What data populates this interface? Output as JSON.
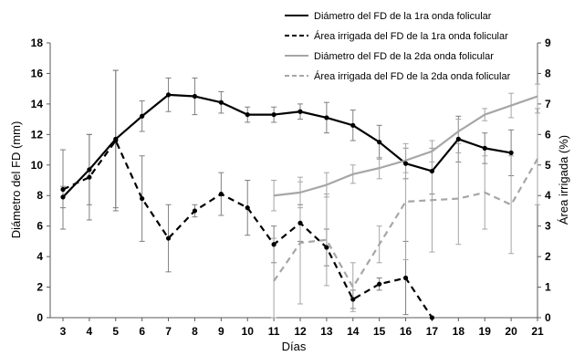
{
  "chart_data": {
    "type": "line",
    "xlabel": "Días",
    "ylabel_left": "Diámetro del FD (mm)",
    "ylabel_right": "Área irrigada (%)",
    "xlim": [
      3,
      21
    ],
    "ylim_left": [
      0,
      18
    ],
    "ylim_right": [
      0,
      9
    ],
    "yticks_left": [
      "0",
      "2",
      "4",
      "6",
      "8",
      "10",
      "12",
      "14",
      "16",
      "18"
    ],
    "yticks_right": [
      "0",
      "1",
      "2",
      "3",
      "4",
      "5",
      "6",
      "7",
      "8",
      "9"
    ],
    "xticks": [
      "3",
      "4",
      "5",
      "6",
      "7",
      "8",
      "9",
      "10",
      "11",
      "12",
      "13",
      "14",
      "15",
      "16",
      "17",
      "18",
      "19",
      "20",
      "21"
    ],
    "grid": false,
    "legend_position": "top-right",
    "series": [
      {
        "name": "Diámetro del FD de la 1ra onda folicular",
        "axis": "left",
        "color": "#000000",
        "dash": "solid",
        "markers": true,
        "x": [
          3,
          4,
          5,
          6,
          7,
          8,
          9,
          10,
          11,
          12,
          13,
          14,
          15,
          16,
          17,
          18,
          19,
          20
        ],
        "y": [
          7.9,
          9.7,
          11.7,
          13.2,
          14.6,
          14.5,
          14.1,
          13.3,
          13.3,
          13.5,
          13.1,
          12.6,
          11.5,
          10.1,
          9.6,
          11.7,
          11.1,
          10.8
        ],
        "err": [
          0.7,
          2.3,
          4.5,
          1.0,
          1.1,
          1.2,
          0.7,
          0.5,
          0.5,
          0.5,
          1.0,
          1.0,
          1.1,
          1.0,
          1.5,
          1.5,
          1.0,
          1.5
        ]
      },
      {
        "name": "Área irrigada del FD de la 1ra onda folicular",
        "axis": "right",
        "color": "#000000",
        "dash": "dashed",
        "markers": true,
        "x": [
          3,
          4,
          5,
          6,
          7,
          8,
          9,
          10,
          11,
          12,
          13,
          14,
          15,
          16,
          17
        ],
        "y": [
          4.2,
          4.6,
          5.8,
          3.9,
          2.6,
          3.5,
          4.05,
          3.6,
          2.4,
          3.1,
          2.3,
          0.6,
          1.1,
          1.3,
          0.0
        ],
        "err": [
          1.3,
          1.4,
          2.3,
          1.4,
          1.1,
          0.2,
          0.7,
          0.9,
          0.6,
          0.6,
          0.6,
          0.3,
          0.2,
          1.2,
          0.0
        ]
      },
      {
        "name": "Diámetro del FD de la 2da onda folicular",
        "axis": "left",
        "color": "#a6a6a6",
        "dash": "solid",
        "markers": false,
        "x": [
          11,
          12,
          13,
          14,
          15,
          16,
          17,
          18,
          19,
          20,
          21
        ],
        "y": [
          8.0,
          8.2,
          8.7,
          9.4,
          9.8,
          10.3,
          10.9,
          12.2,
          13.3,
          13.9,
          14.5
        ],
        "err": [
          1.0,
          1.0,
          0.8,
          0.6,
          0.7,
          0.8,
          0.7,
          0.8,
          0.4,
          0.8,
          0.8
        ]
      },
      {
        "name": "Área irrigada del FD de la 2da onda folicular",
        "axis": "right",
        "color": "#a6a6a6",
        "dash": "dashed",
        "markers": false,
        "x": [
          11,
          12,
          13,
          14,
          15,
          16,
          17,
          18,
          19,
          20,
          21
        ],
        "y": [
          1.2,
          2.45,
          2.55,
          1.0,
          2.4,
          3.8,
          3.85,
          3.9,
          4.1,
          3.7,
          5.2
        ],
        "err": [
          1.4,
          2.0,
          1.5,
          0.8,
          0.6,
          1.9,
          1.7,
          1.5,
          1.2,
          1.6,
          1.5
        ]
      }
    ]
  }
}
